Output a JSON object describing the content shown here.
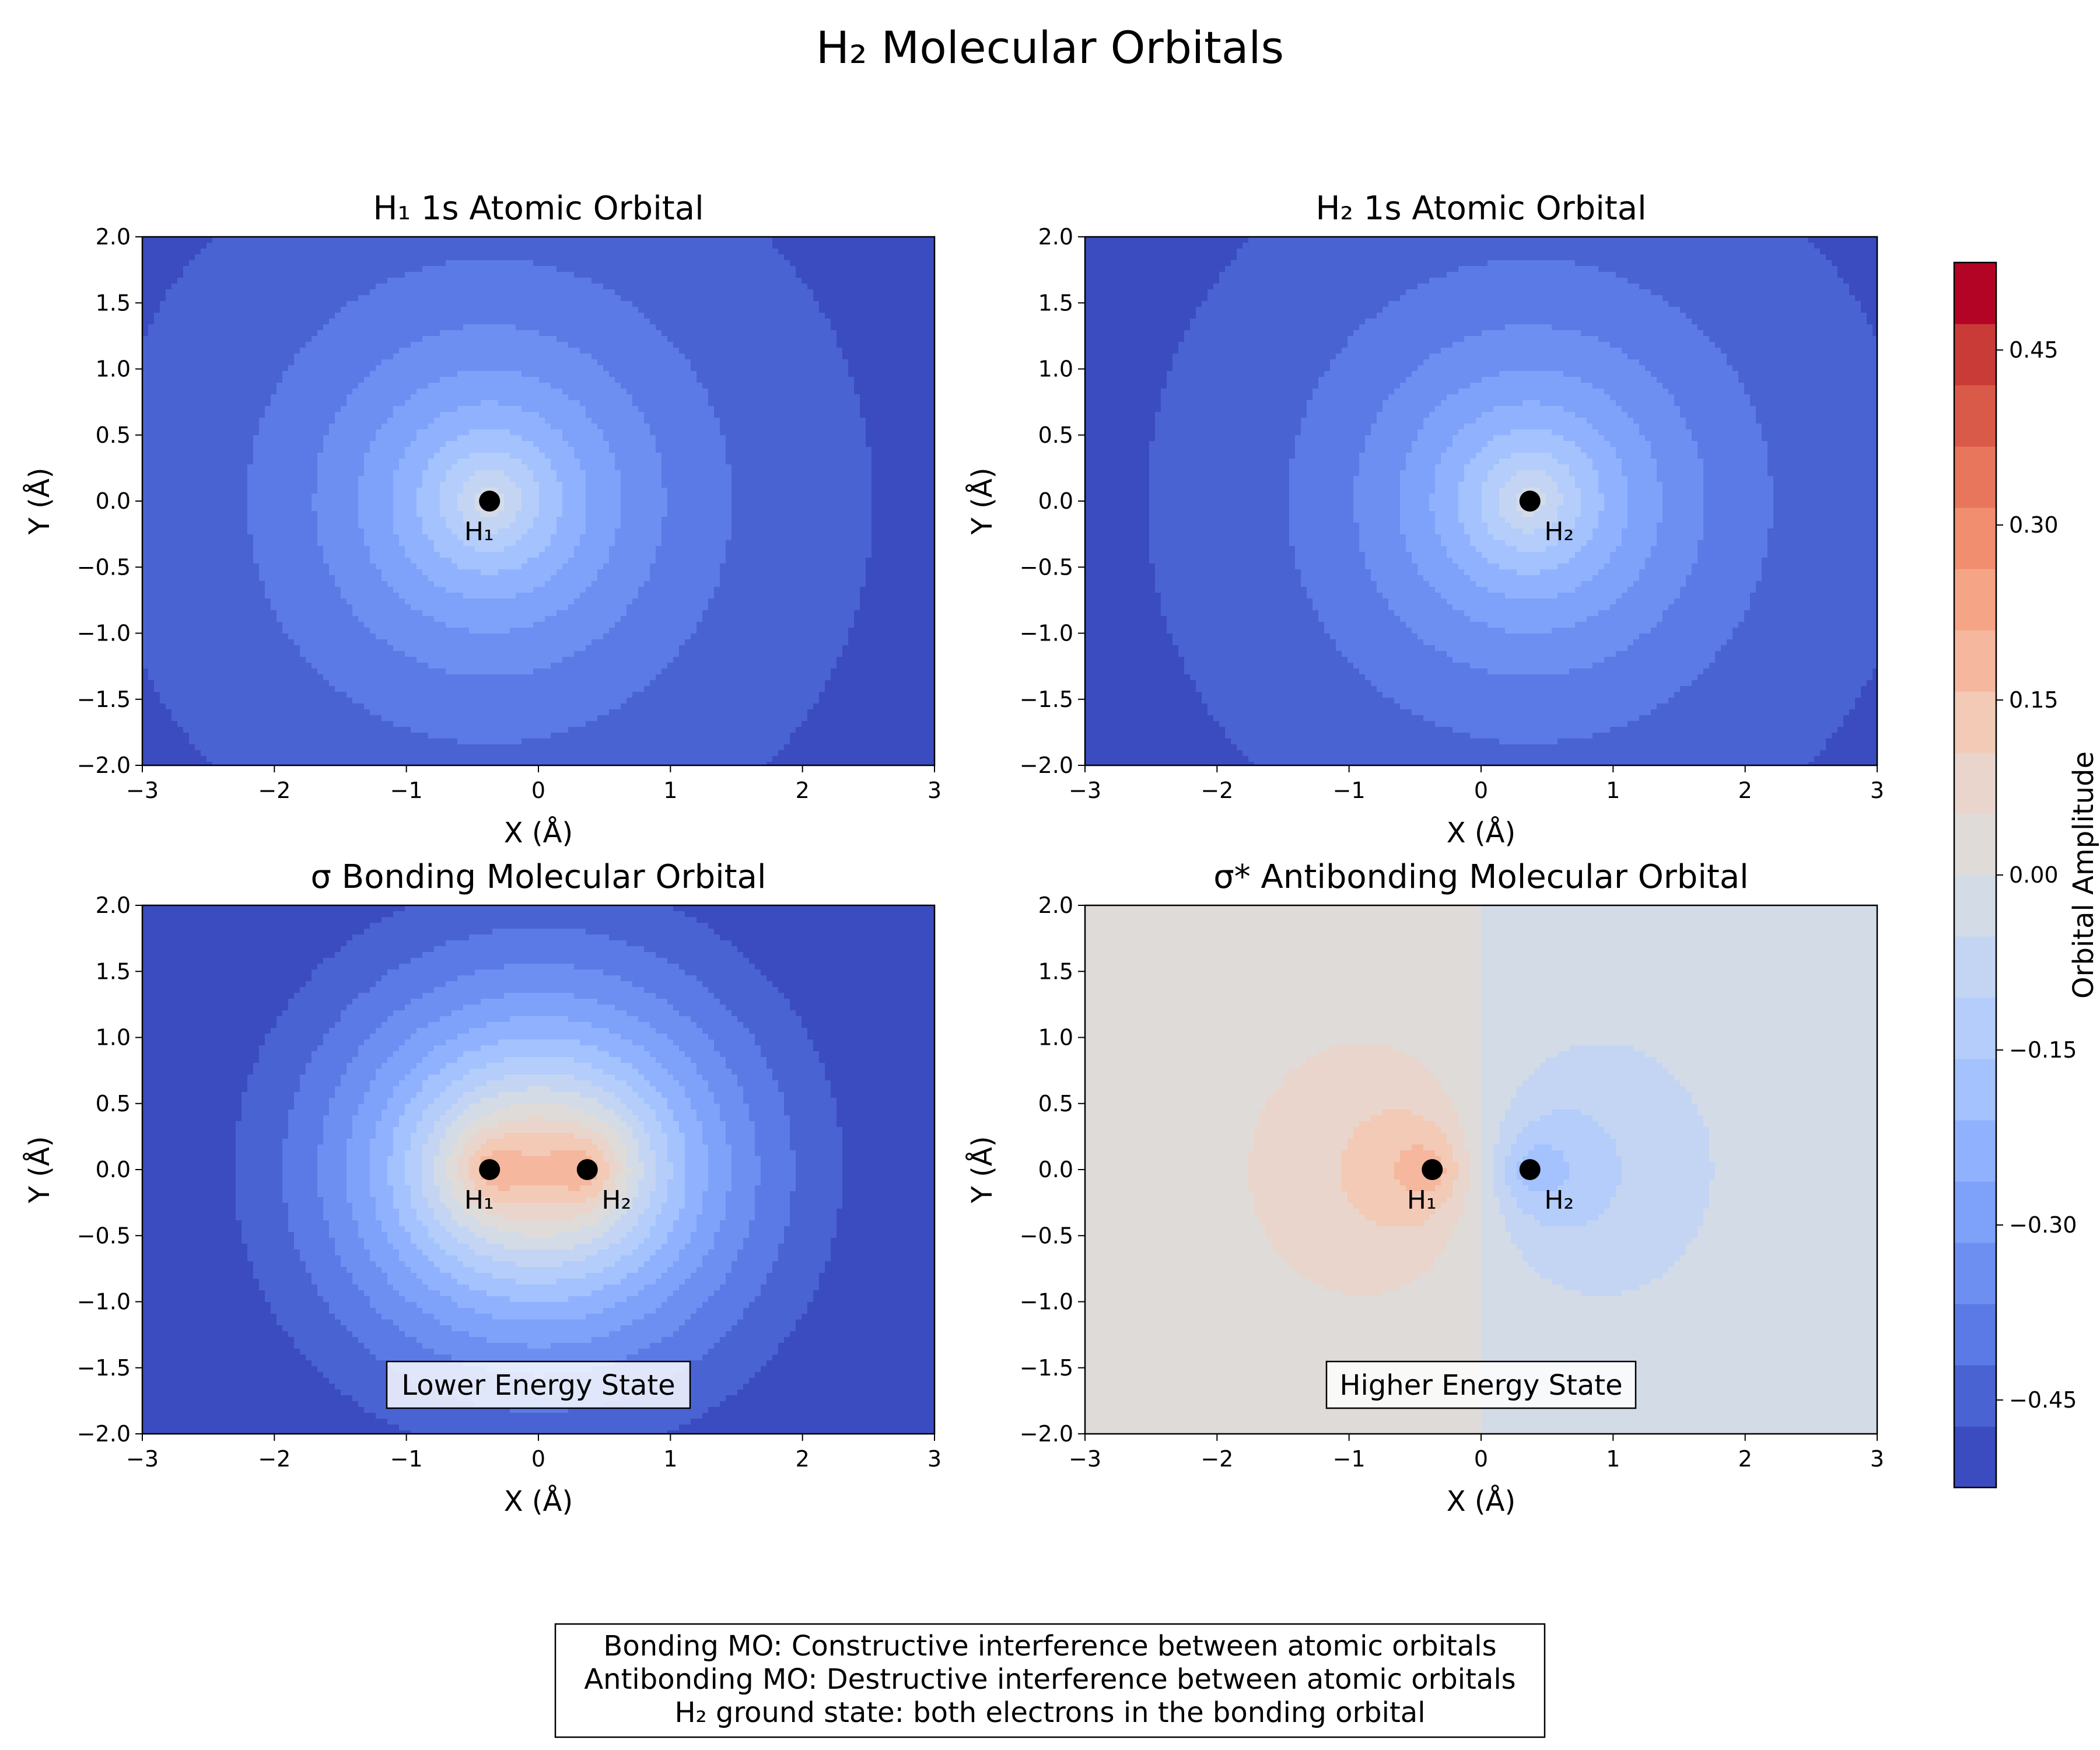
{
  "figure": {
    "suptitle": "H₂ Molecular Orbitals",
    "note_lines": [
      "Bonding MO: Constructive interference between atomic orbitals",
      "Antibonding MO: Destructive interference between atomic orbitals",
      "H₂ ground state: both electrons in the bonding orbital"
    ]
  },
  "colorbar": {
    "label": "Orbital Amplitude",
    "range": [
      -0.525,
      0.525
    ],
    "levels": [
      -0.525,
      -0.4725,
      -0.42,
      -0.3675,
      -0.315,
      -0.2625,
      -0.21,
      -0.1575,
      -0.105,
      -0.0525,
      0.0,
      0.0525,
      0.105,
      0.1575,
      0.21,
      0.2625,
      0.315,
      0.3675,
      0.42,
      0.4725,
      0.525
    ],
    "ticks": [
      -0.45,
      -0.3,
      -0.15,
      0.0,
      0.15,
      0.3,
      0.45
    ],
    "tick_labels": [
      "−0.45",
      "−0.30",
      "−0.15",
      "0.00",
      "0.15",
      "0.30",
      "0.45"
    ],
    "colors": [
      "#3b4cc0",
      "#4a63d3",
      "#5b7ae5",
      "#6c8ff1",
      "#7ea1fa",
      "#90b2fe",
      "#a3c2fe",
      "#b4cdfa",
      "#c4d5f3",
      "#d3dbe7",
      "#dfdbd9",
      "#e9d5cb",
      "#f2cab5",
      "#f5b79e",
      "#f6a486",
      "#f18e70",
      "#e8765c",
      "#da5a49",
      "#c93b37",
      "#b40426"
    ]
  },
  "chart_data": [
    {
      "type": "heatmap",
      "id": "h1",
      "title": "H₁ 1s Atomic Orbital",
      "xlabel": "X (Å)",
      "ylabel": "Y (Å)",
      "xlim": [
        -3,
        3
      ],
      "ylim": [
        -2,
        2
      ],
      "xticks": [
        -3,
        -2,
        -1,
        0,
        1,
        2,
        3
      ],
      "yticks": [
        -2.0,
        -1.5,
        -1.0,
        -0.5,
        0.0,
        0.5,
        1.0,
        1.5,
        2.0
      ],
      "function": "psi1",
      "atoms": [
        {
          "label": "H₁",
          "x": -0.37,
          "y": 0.0
        }
      ],
      "annotation": ""
    },
    {
      "type": "heatmap",
      "id": "h2",
      "title": "H₂ 1s Atomic Orbital",
      "xlabel": "X (Å)",
      "ylabel": "Y (Å)",
      "xlim": [
        -3,
        3
      ],
      "ylim": [
        -2,
        2
      ],
      "xticks": [
        -3,
        -2,
        -1,
        0,
        1,
        2,
        3
      ],
      "yticks": [
        -2.0,
        -1.5,
        -1.0,
        -0.5,
        0.0,
        0.5,
        1.0,
        1.5,
        2.0
      ],
      "function": "psi2",
      "atoms": [
        {
          "label": "H₂",
          "x": 0.37,
          "y": 0.0
        }
      ],
      "annotation": ""
    },
    {
      "type": "heatmap",
      "id": "bond",
      "title": "σ Bonding Molecular Orbital",
      "xlabel": "X (Å)",
      "ylabel": "Y (Å)",
      "xlim": [
        -3,
        3
      ],
      "ylim": [
        -2,
        2
      ],
      "xticks": [
        -3,
        -2,
        -1,
        0,
        1,
        2,
        3
      ],
      "yticks": [
        -2.0,
        -1.5,
        -1.0,
        -0.5,
        0.0,
        0.5,
        1.0,
        1.5,
        2.0
      ],
      "function": "bonding",
      "atoms": [
        {
          "label": "H₁",
          "x": -0.37,
          "y": 0.0
        },
        {
          "label": "H₂",
          "x": 0.37,
          "y": 0.0
        }
      ],
      "annotation": "Lower Energy State"
    },
    {
      "type": "heatmap",
      "id": "anti",
      "title": "σ* Antibonding Molecular Orbital",
      "xlabel": "X (Å)",
      "ylabel": "Y (Å)",
      "xlim": [
        -3,
        3
      ],
      "ylim": [
        -2,
        2
      ],
      "xticks": [
        -3,
        -2,
        -1,
        0,
        1,
        2,
        3
      ],
      "yticks": [
        -2.0,
        -1.5,
        -1.0,
        -0.5,
        0.0,
        0.5,
        1.0,
        1.5,
        2.0
      ],
      "function": "antibonding",
      "atoms": [
        {
          "label": "H₁",
          "x": -0.37,
          "y": 0.0
        },
        {
          "label": "H₂",
          "x": 0.37,
          "y": 0.0
        }
      ],
      "annotation": "Higher Energy State"
    }
  ]
}
